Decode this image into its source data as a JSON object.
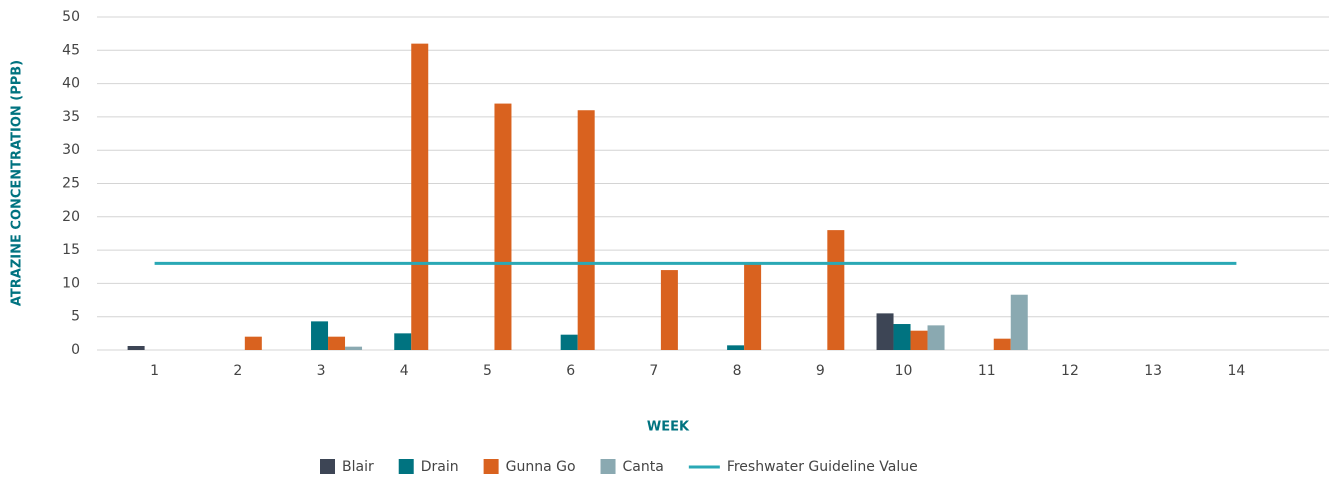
{
  "chart_data": {
    "type": "bar",
    "xlabel": "WEEK",
    "ylabel": "ATRAZINE CONCENTRATION (PPB)",
    "categories": [
      "1",
      "2",
      "3",
      "4",
      "5",
      "6",
      "7",
      "8",
      "9",
      "10",
      "11",
      "12",
      "13",
      "14"
    ],
    "series": [
      {
        "name": "Blair",
        "color": "#3d4555",
        "values": [
          0.6,
          0,
          0,
          0,
          0,
          0,
          0,
          0,
          0,
          5.5,
          0,
          0,
          0,
          0
        ]
      },
      {
        "name": "Drain",
        "color": "#007380",
        "values": [
          0,
          0,
          4.3,
          2.5,
          0,
          2.3,
          0,
          0.7,
          0,
          3.9,
          0,
          0,
          0,
          0
        ]
      },
      {
        "name": "Gunna Go",
        "color": "#d9621f",
        "values": [
          0,
          2,
          2,
          46,
          37,
          36,
          12,
          13,
          18,
          2.9,
          1.7,
          0,
          0,
          0
        ]
      },
      {
        "name": "Canta",
        "color": "#8aa9b1",
        "values": [
          0,
          0,
          0.5,
          0,
          0,
          0,
          0,
          0,
          0,
          3.7,
          8.3,
          0,
          0,
          0
        ]
      },
      {
        "name": "Freshwater Guideline Value",
        "color": "#2aa8b5",
        "type": "line",
        "values": [
          13,
          13,
          13,
          13,
          13,
          13,
          13,
          13,
          13,
          13,
          13,
          13,
          13,
          13
        ]
      }
    ],
    "ylim": [
      0,
      50
    ],
    "yticks": [
      0,
      5,
      10,
      15,
      20,
      25,
      30,
      35,
      40,
      45,
      50
    ],
    "grid": true,
    "legend": "bottom"
  }
}
